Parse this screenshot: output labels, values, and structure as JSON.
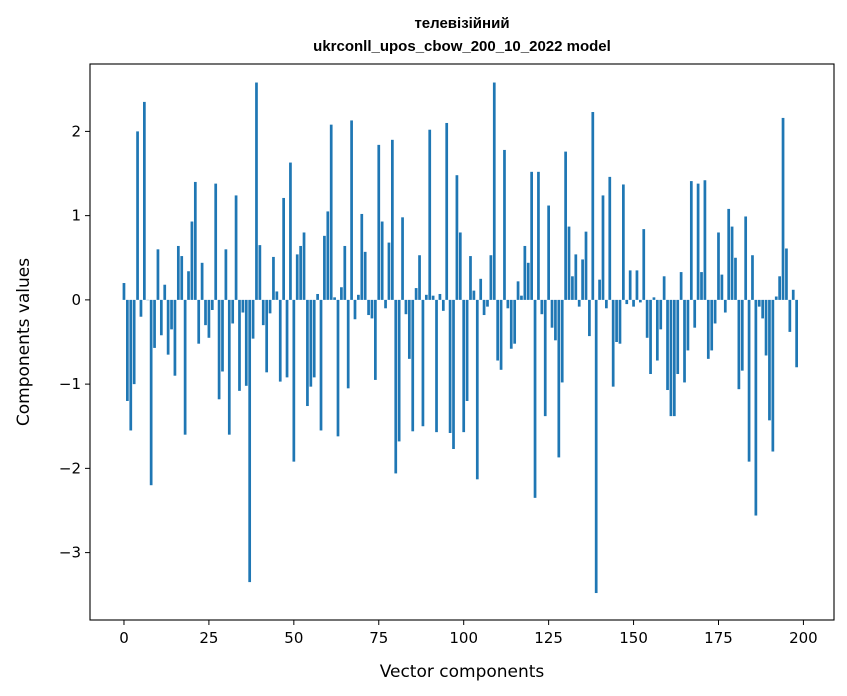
{
  "chart_data": {
    "type": "bar",
    "title_line1": "телевізійний",
    "title_line2": "ukrconll_upos_cbow_200_10_2022 model",
    "xlabel": "Vector components",
    "ylabel": "Components values",
    "xlim": [
      -10,
      209
    ],
    "ylim": [
      -3.8,
      2.8
    ],
    "xticks": [
      0,
      25,
      50,
      75,
      100,
      125,
      150,
      175,
      200
    ],
    "xtick_labels": [
      "0",
      "25",
      "50",
      "75",
      "100",
      "125",
      "150",
      "175",
      "200"
    ],
    "yticks": [
      -3,
      -2,
      -1,
      0,
      1,
      2
    ],
    "ytick_labels": [
      "−3",
      "−2",
      "−1",
      "0",
      "1",
      "2"
    ],
    "bar_color": "#1f77b4",
    "grid": false,
    "values": [
      0.2,
      -1.2,
      -1.55,
      -1.0,
      2.0,
      -0.2,
      2.35,
      0.0,
      -2.2,
      -0.57,
      0.6,
      -0.42,
      0.18,
      -0.65,
      -0.35,
      -0.9,
      0.64,
      0.52,
      -1.6,
      0.34,
      0.93,
      1.4,
      -0.52,
      0.44,
      -0.3,
      -0.45,
      -0.12,
      1.38,
      -1.18,
      -0.85,
      0.6,
      -1.6,
      -0.28,
      1.24,
      -1.08,
      -0.15,
      -1.02,
      -3.35,
      -0.46,
      2.58,
      0.65,
      -0.3,
      -0.86,
      -0.16,
      0.51,
      0.1,
      -0.97,
      1.21,
      -0.92,
      1.63,
      -1.92,
      0.54,
      0.64,
      0.8,
      -1.26,
      -1.03,
      -0.92,
      0.07,
      -1.55,
      0.76,
      1.05,
      2.08,
      0.03,
      -1.62,
      0.15,
      0.64,
      -1.05,
      2.13,
      -0.23,
      0.06,
      1.02,
      0.57,
      -0.18,
      -0.22,
      -0.95,
      1.84,
      0.93,
      -0.1,
      0.68,
      1.9,
      -2.06,
      -1.68,
      0.98,
      -0.17,
      -0.7,
      -1.56,
      0.14,
      0.53,
      -1.5,
      0.06,
      2.02,
      0.05,
      -1.57,
      0.07,
      -0.13,
      2.1,
      -1.58,
      -1.77,
      1.48,
      0.8,
      -1.57,
      -1.2,
      0.52,
      0.11,
      -2.13,
      0.25,
      -0.18,
      -0.08,
      0.53,
      2.58,
      -0.72,
      -0.83,
      1.78,
      -0.1,
      -0.58,
      -0.52,
      0.22,
      0.05,
      0.64,
      0.44,
      1.52,
      -2.35,
      1.52,
      -0.17,
      -1.38,
      1.12,
      -0.33,
      -0.48,
      -1.87,
      -0.98,
      1.76,
      0.87,
      0.28,
      0.54,
      -0.08,
      0.48,
      0.81,
      -0.43,
      2.23,
      -3.48,
      0.24,
      1.24,
      -0.1,
      1.46,
      -1.03,
      -0.5,
      -0.52,
      1.37,
      -0.05,
      0.35,
      -0.08,
      0.35,
      -0.03,
      0.84,
      -0.45,
      -0.88,
      0.03,
      -0.72,
      -0.35,
      0.28,
      -1.07,
      -1.38,
      -1.38,
      -0.88,
      0.33,
      -0.98,
      -0.6,
      1.41,
      -0.33,
      1.38,
      0.33,
      1.42,
      -0.7,
      -0.6,
      -0.28,
      0.8,
      0.3,
      -0.15,
      1.08,
      0.87,
      0.5,
      -1.06,
      -0.84,
      0.99,
      -1.92,
      0.53,
      -2.56,
      -0.08,
      -0.22,
      -0.66,
      -1.43,
      -1.8,
      0.04,
      0.28,
      2.16,
      0.61,
      -0.38,
      0.12,
      -0.8
    ]
  }
}
